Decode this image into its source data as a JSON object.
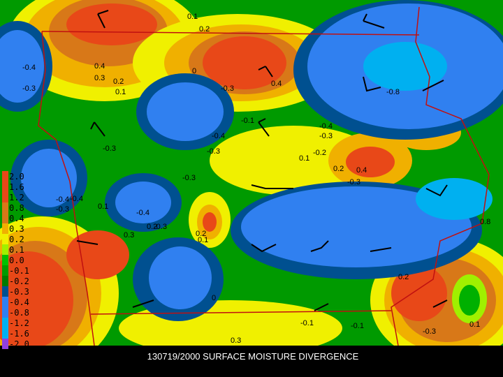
{
  "caption": "130719/2000 SURFACE MOISTURE DIVERGENCE",
  "legend": [
    "2.0",
    "1.6",
    "1.2",
    "0.8",
    "0.4",
    "0.3",
    "0.2",
    "0.1",
    "0.0",
    "-0.1",
    "-0.2",
    "-0.3",
    "-0.4",
    "-0.8",
    "-1.2",
    "-1.6",
    "-2.0"
  ],
  "contour_labels": [
    "-0.4",
    "-0.3",
    "0.4",
    "0.3",
    "0.2",
    "0.1",
    "0.1",
    "0.2",
    "0",
    "-0.3",
    "0.4",
    "-0.8",
    "-0.4",
    "-0.3",
    "-0.3",
    "-0.4",
    "-0.3",
    "-0.1",
    "-0.2",
    "0.1",
    "0.2",
    "-0.3",
    "-0.4",
    "-0.3",
    "-0.4",
    "0.3",
    "0.2",
    "0.1",
    "-0.3",
    "-0.4",
    "-0.3",
    "0.8",
    "0",
    "0.1",
    "-0.1",
    "-0.1",
    "0.3",
    "0.2",
    "-0.3",
    "0.4",
    "0.1",
    "0.2"
  ]
}
